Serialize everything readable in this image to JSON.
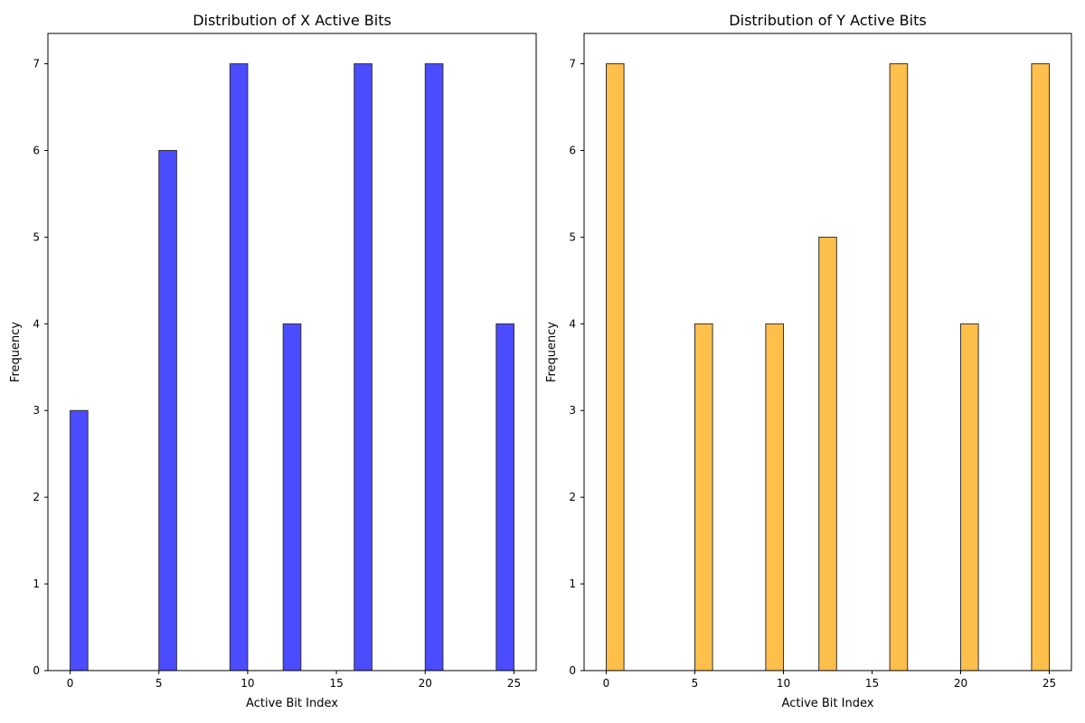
{
  "chart_data": [
    {
      "type": "bar",
      "title": "Distribution of X Active Bits",
      "xlabel": "Active Bit Index",
      "ylabel": "Frequency",
      "xlim": [
        -1.25,
        26.25
      ],
      "ylim": [
        0,
        7.35
      ],
      "xticks": [
        0,
        5,
        10,
        15,
        20,
        25
      ],
      "yticks": [
        0,
        1,
        2,
        3,
        4,
        5,
        6,
        7
      ],
      "bin_width": 1,
      "bins": [
        {
          "x0": 0,
          "x1": 1,
          "value": 3
        },
        {
          "x0": 5,
          "x1": 6,
          "value": 6
        },
        {
          "x0": 9,
          "x1": 10,
          "value": 7
        },
        {
          "x0": 12,
          "x1": 13,
          "value": 4
        },
        {
          "x0": 16,
          "x1": 17,
          "value": 7
        },
        {
          "x0": 20,
          "x1": 21,
          "value": 7
        },
        {
          "x0": 24,
          "x1": 25,
          "value": 4
        }
      ],
      "color": "#4b4bff",
      "edge_color": "#333333",
      "grid": false
    },
    {
      "type": "bar",
      "title": "Distribution of Y Active Bits",
      "xlabel": "Active Bit Index",
      "ylabel": "Frequency",
      "xlim": [
        -1.25,
        26.25
      ],
      "ylim": [
        0,
        7.35
      ],
      "xticks": [
        0,
        5,
        10,
        15,
        20,
        25
      ],
      "yticks": [
        0,
        1,
        2,
        3,
        4,
        5,
        6,
        7
      ],
      "bin_width": 1,
      "bins": [
        {
          "x0": 0,
          "x1": 1,
          "value": 7
        },
        {
          "x0": 5,
          "x1": 6,
          "value": 4
        },
        {
          "x0": 9,
          "x1": 10,
          "value": 4
        },
        {
          "x0": 12,
          "x1": 13,
          "value": 5
        },
        {
          "x0": 16,
          "x1": 17,
          "value": 7
        },
        {
          "x0": 20,
          "x1": 21,
          "value": 4
        },
        {
          "x0": 24,
          "x1": 25,
          "value": 7
        }
      ],
      "color": "#ffbf4b",
      "edge_color": "#333333",
      "grid": false
    }
  ]
}
